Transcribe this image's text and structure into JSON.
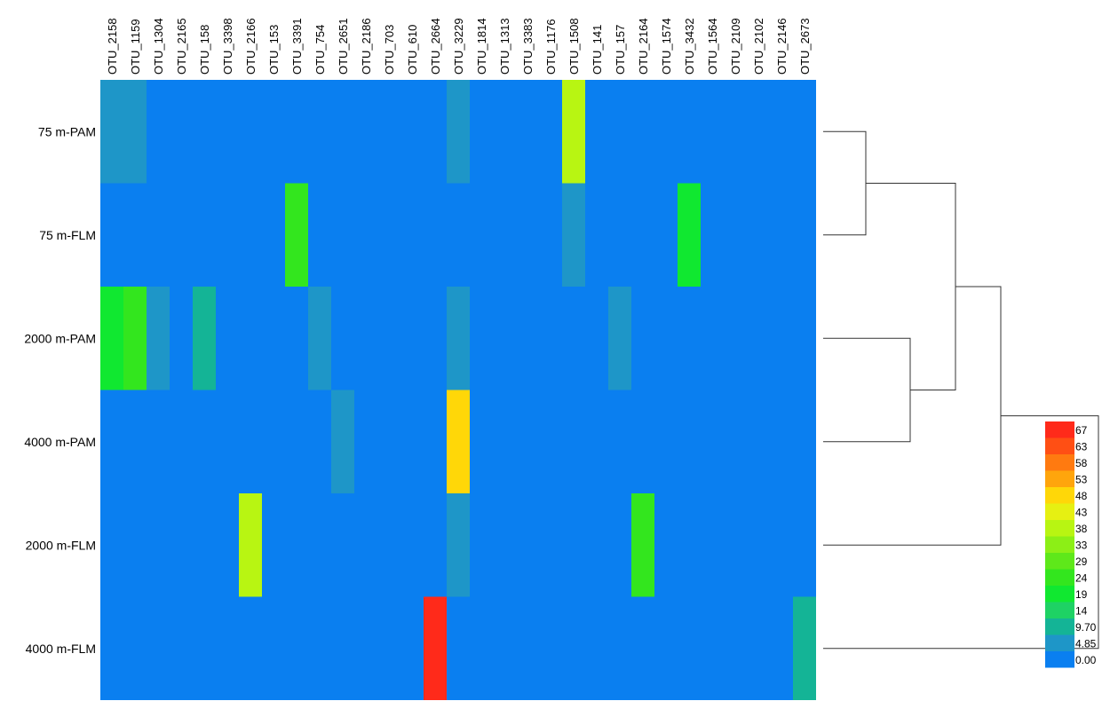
{
  "chart_data": {
    "type": "heatmap",
    "columns": [
      "OTU_2158",
      "OTU_1159",
      "OTU_1304",
      "OTU_2165",
      "OTU_158",
      "OTU_3398",
      "OTU_2166",
      "OTU_153",
      "OTU_3391",
      "OTU_754",
      "OTU_2651",
      "OTU_2186",
      "OTU_703",
      "OTU_610",
      "OTU_2664",
      "OTU_3229",
      "OTU_1814",
      "OTU_1313",
      "OTU_3383",
      "OTU_1176",
      "OTU_1508",
      "OTU_141",
      "OTU_157",
      "OTU_2164",
      "OTU_1574",
      "OTU_3432",
      "OTU_1564",
      "OTU_2109",
      "OTU_2102",
      "OTU_2146",
      "OTU_2673"
    ],
    "rows": [
      "75 m-PAM",
      "75 m-FLM",
      "2000 m-PAM",
      "4000 m-PAM",
      "2000 m-FLM",
      "4000 m-FLM"
    ],
    "values": [
      [
        7,
        7,
        0,
        0,
        0,
        0,
        0,
        0,
        0,
        0,
        0,
        0,
        0,
        0,
        0,
        6,
        0,
        0,
        0,
        0,
        38,
        0,
        0,
        0,
        0,
        0,
        0,
        0,
        0,
        0,
        0
      ],
      [
        0,
        0,
        0,
        0,
        0,
        0,
        0,
        0,
        24,
        0,
        0,
        0,
        0,
        0,
        0,
        0,
        0,
        0,
        0,
        0,
        6,
        0,
        0,
        0,
        0,
        19,
        0,
        0,
        0,
        0,
        0
      ],
      [
        19,
        24,
        6,
        0,
        10,
        0,
        0,
        0,
        0,
        6,
        0,
        0,
        0,
        0,
        0,
        6,
        0,
        0,
        0,
        0,
        0,
        0,
        6,
        0,
        0,
        0,
        0,
        0,
        0,
        0,
        0
      ],
      [
        0,
        0,
        0,
        0,
        0,
        0,
        0,
        0,
        0,
        0,
        7,
        0,
        0,
        0,
        0,
        48,
        0,
        0,
        0,
        0,
        0,
        0,
        0,
        0,
        0,
        0,
        0,
        0,
        0,
        0,
        0
      ],
      [
        0,
        0,
        0,
        0,
        0,
        0,
        38,
        0,
        0,
        0,
        0,
        0,
        0,
        0,
        0,
        6,
        0,
        0,
        0,
        0,
        0,
        0,
        0,
        24,
        0,
        0,
        0,
        0,
        0,
        0,
        0
      ],
      [
        0,
        0,
        0,
        0,
        0,
        0,
        0,
        0,
        0,
        0,
        0,
        0,
        0,
        0,
        67,
        0,
        0,
        0,
        0,
        0,
        0,
        0,
        0,
        0,
        0,
        0,
        0,
        0,
        0,
        0,
        10
      ]
    ],
    "legend": {
      "labels": [
        "67",
        "63",
        "58",
        "53",
        "48",
        "43",
        "38",
        "33",
        "29",
        "24",
        "19",
        "14",
        "9.70",
        "4.85",
        "0.00"
      ],
      "colors": [
        "#ff2a1a",
        "#ff4f14",
        "#ff7a10",
        "#ffa50c",
        "#ffd708",
        "#e6f012",
        "#b8f512",
        "#8cef16",
        "#5ee81a",
        "#33e61e",
        "#10e830",
        "#1ed264",
        "#14b496",
        "#1e96c8",
        "#0a7ff0"
      ],
      "placement": "bottom-right"
    },
    "dendrogram": {
      "clusters": [
        [
          "75 m-PAM",
          "75 m-FLM"
        ],
        [
          "2000 m-PAM",
          "4000 m-PAM"
        ],
        [
          [
            "75 m-PAM",
            "75 m-FLM"
          ],
          [
            "2000 m-PAM",
            "4000 m-PAM"
          ]
        ],
        [
          [
            [
              "75 m-PAM",
              "75 m-FLM"
            ],
            [
              "2000 m-PAM",
              "4000 m-PAM"
            ]
          ],
          "2000 m-FLM"
        ],
        [
          [
            [
              [
                "75 m-PAM",
                "75 m-FLM"
              ],
              [
                "2000 m-PAM",
                "4000 m-PAM"
              ]
            ],
            "2000 m-FLM"
          ],
          "4000 m-FLM"
        ]
      ]
    }
  }
}
